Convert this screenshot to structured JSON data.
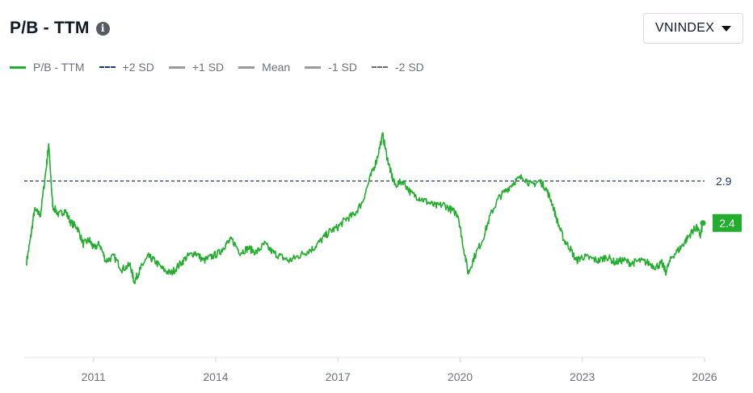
{
  "header": {
    "title": "P/B - TTM",
    "info_icon": "info-icon"
  },
  "dropdown": {
    "selected": "VNINDEX",
    "icon": "caret-down-icon"
  },
  "legend": [
    {
      "label": "P/B - TTM",
      "color": "#22ad2e",
      "style": "solid"
    },
    {
      "label": "+2 SD",
      "color": "#1d3b6b",
      "style": "dashed"
    },
    {
      "label": "+1 SD",
      "color": "#9b9b9b",
      "style": "solid"
    },
    {
      "label": "Mean",
      "color": "#9b9b9b",
      "style": "solid"
    },
    {
      "label": "-1 SD",
      "color": "#9b9b9b",
      "style": "solid"
    },
    {
      "label": "-2 SD",
      "color": "#6b6b6b",
      "style": "dashed"
    }
  ],
  "chart_data": {
    "type": "line",
    "title": "P/B - TTM",
    "x_tick_labels": [
      "2011",
      "2014",
      "2017",
      "2020",
      "2023",
      "2026"
    ],
    "x_tick_years": [
      2011,
      2014,
      2017,
      2020,
      2023,
      2026
    ],
    "xlim": [
      2009.3,
      2026
    ],
    "ylim": [
      0.8,
      3.9
    ],
    "grid": false,
    "legend_position": "top-left",
    "reference_lines": [
      {
        "name": "+2 SD",
        "value": 2.9,
        "label": "2.9",
        "color": "#1d3b6b",
        "style": "dashed"
      }
    ],
    "last_value_label": "2.4",
    "series": [
      {
        "name": "P/B - TTM",
        "color": "#22ad2e",
        "points": [
          [
            2009.35,
            1.92
          ],
          [
            2009.45,
            2.2
          ],
          [
            2009.55,
            2.55
          ],
          [
            2009.7,
            2.5
          ],
          [
            2009.85,
            3.1
          ],
          [
            2009.9,
            3.35
          ],
          [
            2009.95,
            2.95
          ],
          [
            2010.0,
            2.6
          ],
          [
            2010.15,
            2.5
          ],
          [
            2010.3,
            2.55
          ],
          [
            2010.45,
            2.4
          ],
          [
            2010.6,
            2.35
          ],
          [
            2010.75,
            2.15
          ],
          [
            2010.9,
            2.2
          ],
          [
            2011.0,
            2.1
          ],
          [
            2011.15,
            2.15
          ],
          [
            2011.3,
            1.95
          ],
          [
            2011.5,
            2.0
          ],
          [
            2011.7,
            1.85
          ],
          [
            2011.9,
            1.9
          ],
          [
            2012.0,
            1.7
          ],
          [
            2012.1,
            1.8
          ],
          [
            2012.2,
            1.9
          ],
          [
            2012.35,
            2.0
          ],
          [
            2012.5,
            1.95
          ],
          [
            2012.7,
            1.85
          ],
          [
            2012.9,
            1.8
          ],
          [
            2013.1,
            1.9
          ],
          [
            2013.3,
            2.0
          ],
          [
            2013.5,
            2.05
          ],
          [
            2013.7,
            1.95
          ],
          [
            2013.9,
            2.0
          ],
          [
            2014.1,
            2.05
          ],
          [
            2014.25,
            2.15
          ],
          [
            2014.4,
            2.2
          ],
          [
            2014.6,
            2.05
          ],
          [
            2014.8,
            2.1
          ],
          [
            2015.0,
            2.05
          ],
          [
            2015.2,
            2.15
          ],
          [
            2015.4,
            2.05
          ],
          [
            2015.6,
            2.0
          ],
          [
            2015.8,
            1.95
          ],
          [
            2016.0,
            2.0
          ],
          [
            2016.2,
            2.05
          ],
          [
            2016.4,
            2.1
          ],
          [
            2016.6,
            2.2
          ],
          [
            2016.8,
            2.3
          ],
          [
            2017.0,
            2.35
          ],
          [
            2017.2,
            2.45
          ],
          [
            2017.4,
            2.5
          ],
          [
            2017.6,
            2.65
          ],
          [
            2017.8,
            2.95
          ],
          [
            2017.95,
            3.15
          ],
          [
            2018.1,
            3.45
          ],
          [
            2018.2,
            3.2
          ],
          [
            2018.3,
            3.0
          ],
          [
            2018.4,
            2.85
          ],
          [
            2018.6,
            2.9
          ],
          [
            2018.8,
            2.75
          ],
          [
            2019.0,
            2.7
          ],
          [
            2019.2,
            2.65
          ],
          [
            2019.4,
            2.6
          ],
          [
            2019.6,
            2.62
          ],
          [
            2019.8,
            2.55
          ],
          [
            2019.95,
            2.5
          ],
          [
            2020.05,
            2.2
          ],
          [
            2020.2,
            1.8
          ],
          [
            2020.35,
            2.0
          ],
          [
            2020.55,
            2.2
          ],
          [
            2020.75,
            2.5
          ],
          [
            2020.95,
            2.7
          ],
          [
            2021.15,
            2.8
          ],
          [
            2021.35,
            2.9
          ],
          [
            2021.55,
            2.95
          ],
          [
            2021.75,
            2.85
          ],
          [
            2021.95,
            2.9
          ],
          [
            2022.1,
            2.82
          ],
          [
            2022.25,
            2.65
          ],
          [
            2022.4,
            2.4
          ],
          [
            2022.55,
            2.2
          ],
          [
            2022.7,
            2.1
          ],
          [
            2022.85,
            1.95
          ],
          [
            2023.0,
            2.0
          ],
          [
            2023.2,
            1.98
          ],
          [
            2023.4,
            1.95
          ],
          [
            2023.6,
            2.0
          ],
          [
            2023.8,
            1.93
          ],
          [
            2024.0,
            1.96
          ],
          [
            2024.2,
            1.92
          ],
          [
            2024.4,
            1.95
          ],
          [
            2024.6,
            1.93
          ],
          [
            2024.8,
            1.88
          ],
          [
            2024.95,
            1.92
          ],
          [
            2025.05,
            1.82
          ],
          [
            2025.2,
            2.0
          ],
          [
            2025.4,
            2.1
          ],
          [
            2025.55,
            2.2
          ],
          [
            2025.7,
            2.3
          ],
          [
            2025.8,
            2.35
          ],
          [
            2025.9,
            2.25
          ],
          [
            2025.96,
            2.4
          ]
        ]
      }
    ]
  }
}
